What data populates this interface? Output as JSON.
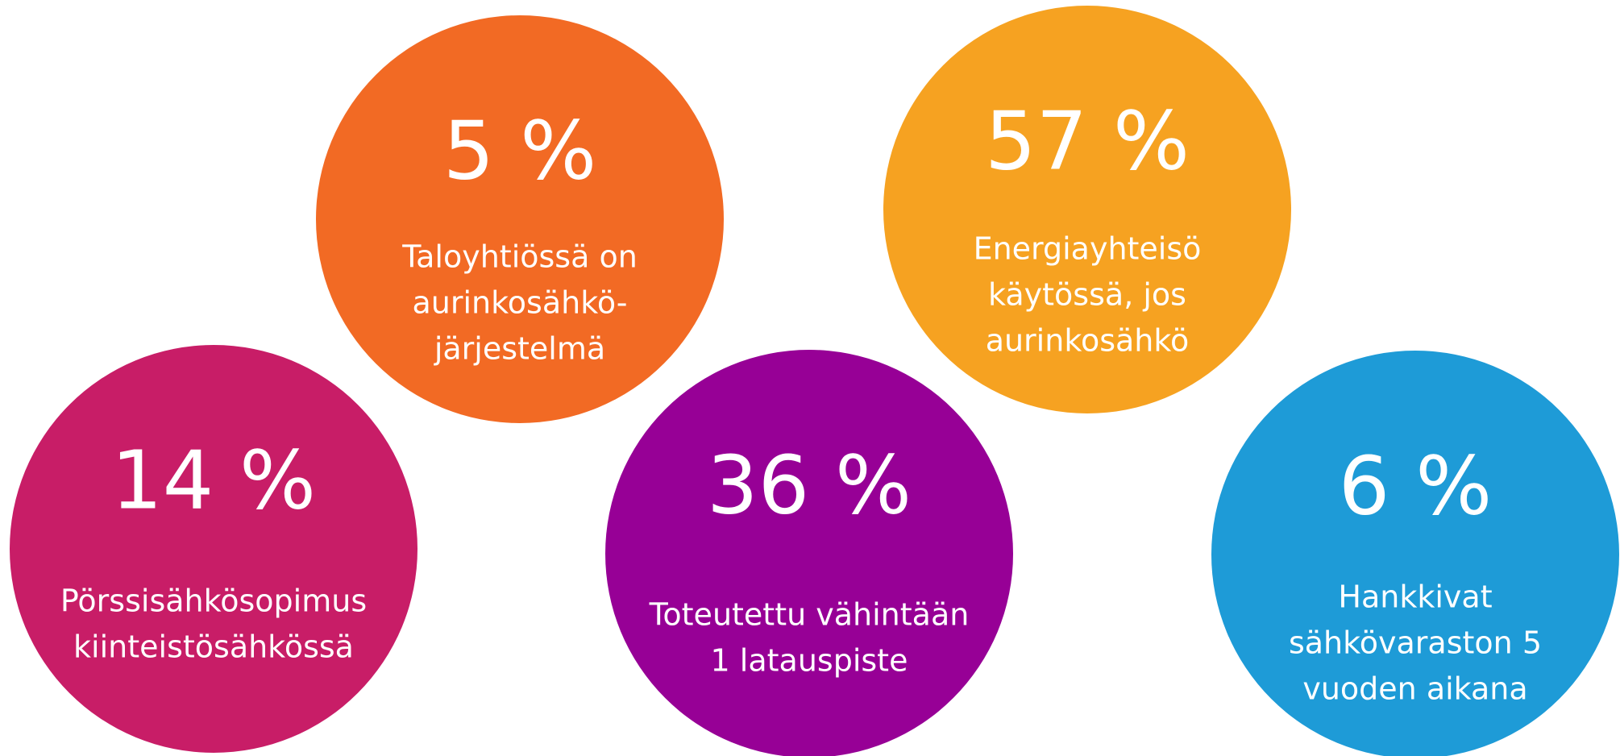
{
  "items": [
    {
      "value": "5 %",
      "lines": [
        "Taloyhtiössä on",
        "aurinkosähkö-",
        "järjestelmä"
      ],
      "color": "#f26a24"
    },
    {
      "value": "57 %",
      "lines": [
        "Energiayhteisö",
        "käytössä, jos",
        "aurinkosähkö"
      ],
      "color": "#f6a221"
    },
    {
      "value": "14 %",
      "lines": [
        "Pörssisähkösopimus",
        "kiinteistösähkössä"
      ],
      "color": "#c81d67"
    },
    {
      "value": "36 %",
      "lines": [
        "Toteutettu vähintään",
        "1 latauspiste"
      ],
      "color": "#970096"
    },
    {
      "value": "6 %",
      "lines": [
        "Hankkivat",
        "sähkövaraston 5",
        "vuoden aikana"
      ],
      "color": "#1e9bd7"
    }
  ]
}
